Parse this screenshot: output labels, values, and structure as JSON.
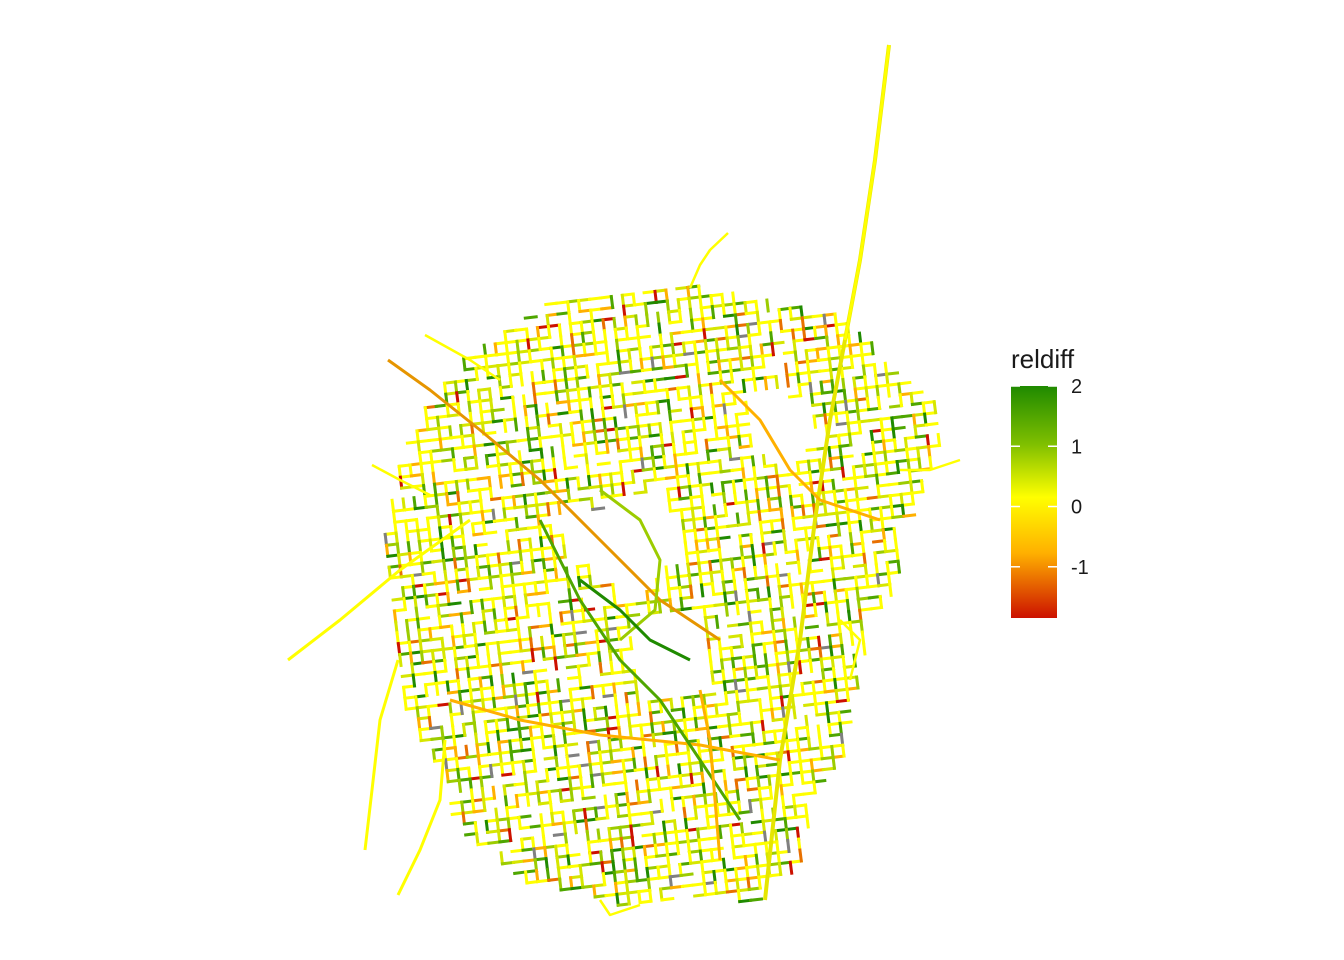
{
  "legend": {
    "title": "reldiff",
    "ticks": [
      {
        "value": 2,
        "label": "2"
      },
      {
        "value": 1,
        "label": "1"
      },
      {
        "value": 0,
        "label": "0"
      },
      {
        "value": -1,
        "label": "-1"
      }
    ],
    "range": [
      -1.85,
      2.0
    ],
    "colors": {
      "high": "#1f8a00",
      "mid_high": "#b8d900",
      "mid": "#ffff00",
      "mid_low": "#ffb000",
      "low": "#cc1100"
    },
    "na_color": "#808080"
  },
  "map": {
    "features": "street network segments colored by relative difference",
    "background": "#ffffff"
  }
}
